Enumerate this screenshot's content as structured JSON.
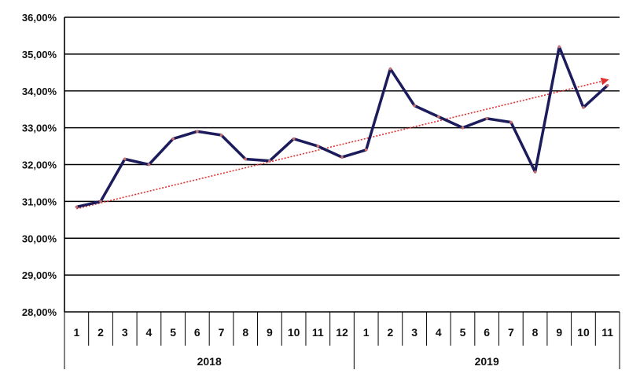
{
  "chart_data": {
    "type": "line",
    "ylim": [
      28,
      36
    ],
    "y_tick_labels": [
      "28,00%",
      "29,00%",
      "30,00%",
      "31,00%",
      "32,00%",
      "33,00%",
      "34,00%",
      "35,00%",
      "36,00%"
    ],
    "grid": "horizontal",
    "legend": "none",
    "groups": [
      {
        "label": "2018",
        "categories": [
          "1",
          "2",
          "3",
          "4",
          "5",
          "6",
          "7",
          "8",
          "9",
          "10",
          "11",
          "12"
        ]
      },
      {
        "label": "2019",
        "categories": [
          "1",
          "2",
          "3",
          "4",
          "5",
          "6",
          "7",
          "8",
          "9",
          "10",
          "11"
        ]
      }
    ],
    "series": [
      {
        "values": [
          30.85,
          31.0,
          32.15,
          32.0,
          32.7,
          32.9,
          32.8,
          32.15,
          32.1,
          32.7,
          32.5,
          32.2,
          32.4,
          34.6,
          33.6,
          33.3,
          33.0,
          33.25,
          33.15,
          31.8,
          35.2,
          33.55,
          34.15
        ],
        "color": "#1c1c5c"
      }
    ],
    "trendline": {
      "from": 30.8,
      "to": 34.3,
      "color": "#e03030",
      "style": "dotted",
      "arrow": true
    }
  }
}
